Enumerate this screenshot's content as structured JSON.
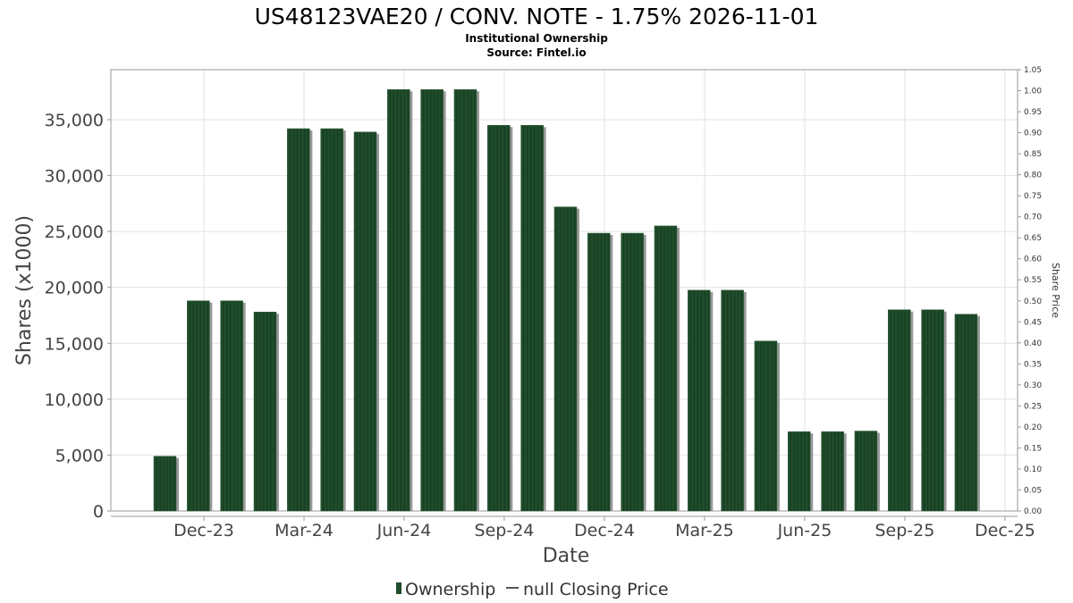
{
  "chart_data": {
    "type": "bar",
    "title": "US48123VAE20 / CONV. NOTE - 1.75% 2026-11-01",
    "subtitle": "Institutional Ownership",
    "source": "Source: Fintel.io",
    "xlabel": "Date",
    "ylabel": "Shares (x1000)",
    "y2label": "Share Price",
    "ylim": [
      0,
      38000
    ],
    "y2lim": [
      0,
      1.05
    ],
    "yticks": [
      "0",
      "5,000",
      "10,000",
      "15,000",
      "20,000",
      "25,000",
      "30,000",
      "35,000"
    ],
    "y2ticks": [
      "0.00",
      "0.05",
      "0.10",
      "0.15",
      "0.20",
      "0.25",
      "0.30",
      "0.35",
      "0.40",
      "0.45",
      "0.50",
      "0.55",
      "0.60",
      "0.65",
      "0.70",
      "0.75",
      "0.80",
      "0.85",
      "0.90",
      "0.95",
      "1.00",
      "1.05"
    ],
    "xticks": [
      "Dec-23",
      "Mar-24",
      "Jun-24",
      "Sep-24",
      "Dec-24",
      "Mar-25",
      "Jun-25",
      "Sep-25",
      "Dec-25"
    ],
    "grid": true,
    "legend_position": "bottom",
    "series": [
      {
        "name": "Ownership",
        "color": "#1f4d2b",
        "values": [
          4900,
          18800,
          18800,
          17800,
          34200,
          34200,
          33900,
          37700,
          37700,
          37700,
          34500,
          34500,
          27200,
          24850,
          24850,
          25500,
          19750,
          19750,
          15200,
          7100,
          7100,
          7150,
          18000,
          18000,
          17600
        ]
      },
      {
        "name": "null Closing Price",
        "color": "#555555",
        "values": []
      }
    ],
    "legend": [
      "Ownership",
      "null Closing Price"
    ]
  }
}
